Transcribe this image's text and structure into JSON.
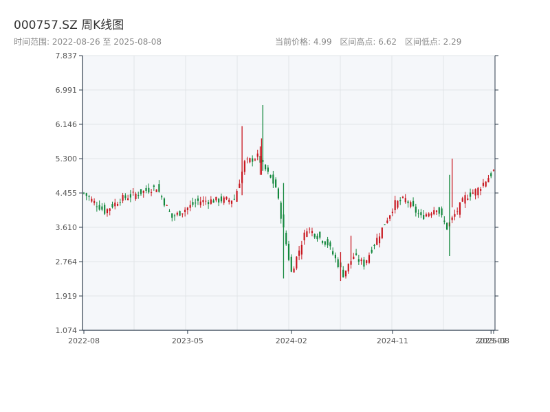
{
  "header": {
    "title": "000757.SZ 周K线图",
    "range_label": "时间范围: 2022-08-26 至 2025-08-08",
    "current_price": "当前价格: 4.99",
    "high_label": "区间高点: 6.62",
    "low_label": "区间低点: 2.29"
  },
  "colors": {
    "up": "#c8171f",
    "down": "#12873c",
    "plot_bg": "#f5f7fa",
    "grid": "#e1e4e8",
    "axis": "#2b3a4a"
  },
  "chart_data": {
    "type": "candlestick",
    "title": "000757.SZ 周K线图",
    "ylim": [
      1.074,
      7.837
    ],
    "ytick_values": [
      1.074,
      1.919,
      2.764,
      3.61,
      4.455,
      5.3,
      6.146,
      6.991,
      7.837
    ],
    "ytick_labels": [
      "1.074",
      "1.919",
      "2.764",
      "3.610",
      "4.455",
      "5.300",
      "6.146",
      "6.991",
      "7.837"
    ],
    "xtick_labels": [
      "2022-08",
      "2023-05",
      "2024-02",
      "2024-11",
      "2025-07",
      "2025-08"
    ],
    "xtick_index": [
      0,
      40,
      80,
      119,
      157,
      158
    ],
    "grid": true,
    "key_points": [
      {
        "i": 0,
        "close": 4.45
      },
      {
        "i": 8,
        "close": 4.0
      },
      {
        "i": 14,
        "close": 4.3
      },
      {
        "i": 28,
        "close": 4.6
      },
      {
        "i": 34,
        "close": 3.85
      },
      {
        "i": 44,
        "close": 4.25
      },
      {
        "i": 58,
        "close": 4.3
      },
      {
        "i": 62,
        "close": 5.2
      },
      {
        "i": 67,
        "close": 5.35
      },
      {
        "i": 74,
        "close": 4.6
      },
      {
        "i": 80,
        "close": 2.5
      },
      {
        "i": 86,
        "close": 3.6
      },
      {
        "i": 94,
        "close": 3.2
      },
      {
        "i": 100,
        "close": 2.45
      },
      {
        "i": 104,
        "close": 2.9
      },
      {
        "i": 108,
        "close": 2.7
      },
      {
        "i": 112,
        "close": 3.2
      },
      {
        "i": 120,
        "close": 4.2
      },
      {
        "i": 124,
        "close": 4.3
      },
      {
        "i": 130,
        "close": 3.85
      },
      {
        "i": 136,
        "close": 4.1
      },
      {
        "i": 140,
        "close": 3.6
      },
      {
        "i": 147,
        "close": 4.35
      },
      {
        "i": 152,
        "close": 4.55
      },
      {
        "i": 158,
        "close": 4.99
      }
    ],
    "spikes": [
      {
        "i": 61,
        "high": 6.1,
        "low": 4.4
      },
      {
        "i": 68,
        "high": 5.6,
        "low": 4.9
      },
      {
        "i": 68.5,
        "high": 5.8,
        "low": 4.9
      },
      {
        "i": 69,
        "high": 6.62,
        "low": 5.0
      },
      {
        "i": 77,
        "high": 4.7,
        "low": 2.35
      },
      {
        "i": 99,
        "high": 3.0,
        "low": 2.29
      },
      {
        "i": 103,
        "high": 3.4,
        "low": 2.7
      },
      {
        "i": 142,
        "high": 5.3,
        "low": 4.1
      },
      {
        "i": 141,
        "high": 4.9,
        "low": 2.9
      }
    ]
  }
}
